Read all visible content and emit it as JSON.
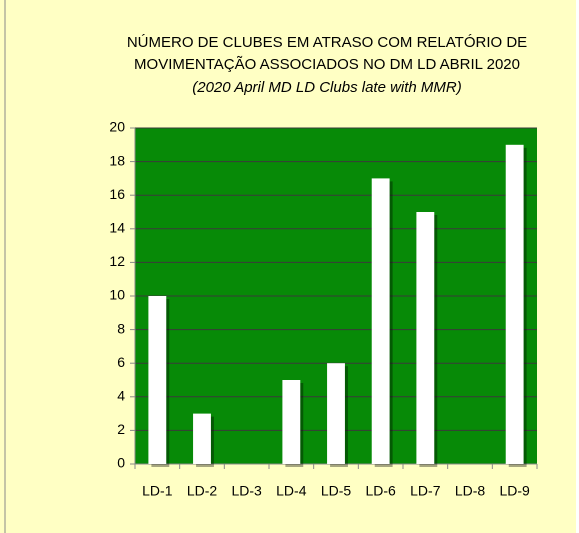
{
  "chart_data": {
    "type": "bar",
    "title": [
      "NÚMERO DE CLUBES EM ATRASO COM RELATÓRIO DE",
      "MOVIMENTAÇÃO  ASSOCIADOS NO DM LD ABRIL  2020",
      "(2020 April MD LD Clubs late with MMR)"
    ],
    "categories": [
      "LD-1",
      "LD-2",
      "LD-3",
      "LD-4",
      "LD-5",
      "LD-6",
      "LD-7",
      "LD-8",
      "LD-9"
    ],
    "values": [
      10,
      3,
      0,
      5,
      6,
      17,
      15,
      0,
      19
    ],
    "color": "#ffffff",
    "plot_color": "#078a07",
    "ylim": [
      0,
      20
    ],
    "yticks": [
      0,
      2,
      4,
      6,
      8,
      10,
      12,
      14,
      16,
      18,
      20
    ],
    "grid": true
  }
}
